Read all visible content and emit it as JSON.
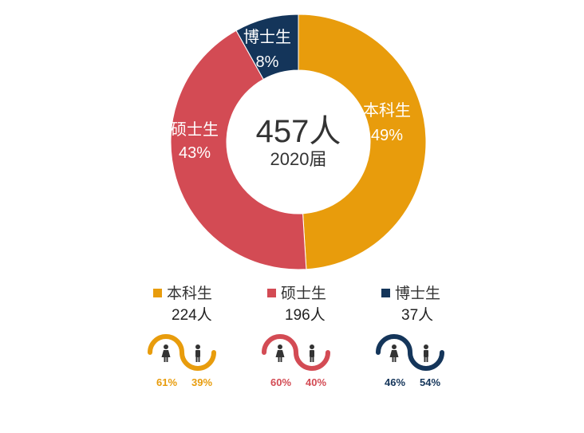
{
  "chart_data": {
    "type": "pie",
    "donut": true,
    "categories": [
      "本科生",
      "硕士生",
      "博士生"
    ],
    "values": [
      224,
      196,
      37
    ],
    "percent_labels": [
      "49%",
      "43%",
      "8%"
    ],
    "colors": [
      "#E89C0C",
      "#D34B54",
      "#14355A"
    ],
    "center_total": "457人",
    "center_year": "2020届",
    "legend_counts": [
      "224人",
      "196人",
      "37人"
    ],
    "gender": [
      {
        "female": "61%",
        "male": "39%",
        "female_value": 61,
        "male_value": 39
      },
      {
        "female": "60%",
        "male": "40%",
        "female_value": 60,
        "male_value": 40
      },
      {
        "female": "46%",
        "male": "54%",
        "female_value": 46,
        "male_value": 54
      }
    ]
  }
}
